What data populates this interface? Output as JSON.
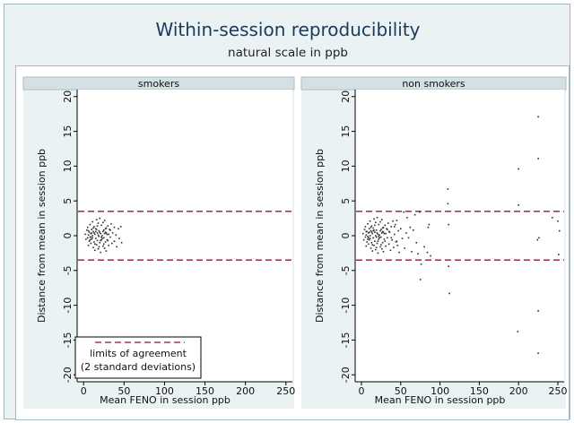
{
  "colors": {
    "panel_background": "#eaf2f3",
    "strip_background": "#d4e0e4",
    "plot_background": "#ffffff",
    "limit_line": "#a23a52",
    "points": "#303030",
    "title": "#1a3b5c"
  },
  "title": "Within-session reproducibility",
  "subtitle": "natural scale in ppb",
  "chart_data": {
    "type": "scatter",
    "xlabel": "Mean FENO in session ppb",
    "ylabel": "Distance from mean in session ppb",
    "xlim": [
      -8,
      258
    ],
    "ylim": [
      -21,
      21
    ],
    "x_ticks": [
      "0",
      "50",
      "100",
      "150",
      "200",
      "250"
    ],
    "y_ticks": [
      "20",
      "15",
      "10",
      "5",
      "0",
      "-5",
      "-10",
      "-15",
      "-20"
    ],
    "limits_of_agreement": [
      3.5,
      -3.5
    ],
    "legend": {
      "position": "bottom-left",
      "line1": "limits of agreement",
      "line2": "(2 standard deviations)"
    },
    "panels": [
      {
        "name": "smokers",
        "points": [
          [
            2,
            0.2
          ],
          [
            3,
            -0.5
          ],
          [
            4,
            0.8
          ],
          [
            5,
            -0.3
          ],
          [
            5,
            1.2
          ],
          [
            6,
            0.1
          ],
          [
            6,
            -1.4
          ],
          [
            7,
            0.5
          ],
          [
            7,
            -0.8
          ],
          [
            8,
            1.6
          ],
          [
            8,
            -0.2
          ],
          [
            9,
            0.3
          ],
          [
            9,
            -1.1
          ],
          [
            10,
            0.9
          ],
          [
            10,
            -0.5
          ],
          [
            11,
            2.0
          ],
          [
            11,
            0.0
          ],
          [
            12,
            -1.7
          ],
          [
            12,
            0.6
          ],
          [
            13,
            1.3
          ],
          [
            13,
            -0.9
          ],
          [
            14,
            0.2
          ],
          [
            14,
            -2.1
          ],
          [
            15,
            1.0
          ],
          [
            15,
            -0.4
          ],
          [
            16,
            2.3
          ],
          [
            16,
            -1.3
          ],
          [
            17,
            0.4
          ],
          [
            17,
            -0.7
          ],
          [
            18,
            1.8
          ],
          [
            18,
            -1.9
          ],
          [
            19,
            0.7
          ],
          [
            19,
            -0.1
          ],
          [
            20,
            2.5
          ],
          [
            20,
            -1.0
          ],
          [
            21,
            0.3
          ],
          [
            21,
            -2.4
          ],
          [
            22,
            1.5
          ],
          [
            22,
            -0.6
          ],
          [
            23,
            0.0
          ],
          [
            24,
            1.9
          ],
          [
            24,
            -1.5
          ],
          [
            25,
            0.8
          ],
          [
            25,
            -0.3
          ],
          [
            26,
            2.2
          ],
          [
            26,
            -1.8
          ],
          [
            27,
            0.5
          ],
          [
            27,
            -0.9
          ],
          [
            28,
            1.1
          ],
          [
            28,
            -2.2
          ],
          [
            29,
            0.2
          ],
          [
            30,
            1.4
          ],
          [
            30,
            -0.7
          ],
          [
            31,
            -1.4
          ],
          [
            32,
            0.9
          ],
          [
            33,
            -0.2
          ],
          [
            34,
            1.7
          ],
          [
            35,
            -1.1
          ],
          [
            36,
            0.4
          ],
          [
            38,
            1.2
          ],
          [
            38,
            -0.8
          ],
          [
            40,
            0.1
          ],
          [
            41,
            -1.6
          ],
          [
            43,
            1.0
          ],
          [
            44,
            -0.4
          ],
          [
            46,
            1.3
          ],
          [
            47,
            -1.0
          ],
          [
            6,
            0.7
          ],
          [
            8,
            -0.6
          ],
          [
            11,
            -0.3
          ],
          [
            13,
            0.4
          ],
          [
            16,
            0.9
          ],
          [
            18,
            0.1
          ],
          [
            20,
            0.5
          ],
          [
            23,
            -0.4
          ],
          [
            26,
            0.3
          ],
          [
            29,
            -0.6
          ],
          [
            12,
            1.1
          ],
          [
            14,
            -1.2
          ],
          [
            17,
            1.4
          ],
          [
            19,
            -1.6
          ],
          [
            22,
            -0.2
          ],
          [
            24,
            0.6
          ],
          [
            27,
            1.0
          ],
          [
            31,
            0.2
          ],
          [
            33,
            0.8
          ],
          [
            9,
            -0.2
          ],
          [
            10,
            0.4
          ],
          [
            15,
            0.6
          ],
          [
            21,
            -0.7
          ],
          [
            25,
            -1.2
          ],
          [
            28,
            0.4
          ]
        ]
      },
      {
        "name": "non smokers",
        "points": [
          [
            2,
            0.3
          ],
          [
            3,
            -0.6
          ],
          [
            4,
            0.9
          ],
          [
            5,
            -0.2
          ],
          [
            5,
            1.3
          ],
          [
            6,
            0.1
          ],
          [
            6,
            -1.5
          ],
          [
            7,
            0.6
          ],
          [
            7,
            -0.9
          ],
          [
            8,
            1.7
          ],
          [
            8,
            -0.1
          ],
          [
            9,
            0.4
          ],
          [
            9,
            -1.2
          ],
          [
            10,
            1.0
          ],
          [
            10,
            -0.6
          ],
          [
            11,
            2.1
          ],
          [
            11,
            0.0
          ],
          [
            12,
            -1.8
          ],
          [
            12,
            0.7
          ],
          [
            13,
            1.4
          ],
          [
            13,
            -1.0
          ],
          [
            14,
            0.3
          ],
          [
            14,
            -2.2
          ],
          [
            15,
            1.1
          ],
          [
            15,
            -0.3
          ],
          [
            16,
            2.4
          ],
          [
            16,
            -1.4
          ],
          [
            17,
            0.5
          ],
          [
            17,
            -0.8
          ],
          [
            18,
            1.9
          ],
          [
            18,
            -2.0
          ],
          [
            19,
            0.8
          ],
          [
            19,
            -0.2
          ],
          [
            20,
            2.6
          ],
          [
            20,
            -1.1
          ],
          [
            21,
            0.2
          ],
          [
            21,
            -2.5
          ],
          [
            22,
            1.6
          ],
          [
            22,
            -0.5
          ],
          [
            23,
            0.1
          ],
          [
            24,
            2.0
          ],
          [
            24,
            -1.6
          ],
          [
            25,
            0.9
          ],
          [
            25,
            -0.2
          ],
          [
            26,
            2.3
          ],
          [
            26,
            -1.9
          ],
          [
            27,
            0.6
          ],
          [
            27,
            -1.0
          ],
          [
            28,
            1.2
          ],
          [
            28,
            -2.3
          ],
          [
            29,
            0.3
          ],
          [
            30,
            1.5
          ],
          [
            30,
            -0.8
          ],
          [
            31,
            -1.5
          ],
          [
            32,
            1.0
          ],
          [
            33,
            -0.3
          ],
          [
            34,
            1.8
          ],
          [
            35,
            -1.2
          ],
          [
            36,
            0.5
          ],
          [
            37,
            -2.1
          ],
          [
            38,
            1.3
          ],
          [
            39,
            -0.6
          ],
          [
            40,
            2.1
          ],
          [
            41,
            -1.7
          ],
          [
            42,
            0.2
          ],
          [
            43,
            1.6
          ],
          [
            44,
            -0.9
          ],
          [
            45,
            2.2
          ],
          [
            46,
            -1.4
          ],
          [
            47,
            0.7
          ],
          [
            48,
            -2.4
          ],
          [
            50,
            1.0
          ],
          [
            52,
            -0.4
          ],
          [
            54,
            3.4
          ],
          [
            55,
            -1.8
          ],
          [
            57,
            0.4
          ],
          [
            58,
            2.6
          ],
          [
            60,
            -0.3
          ],
          [
            62,
            1.2
          ],
          [
            64,
            -2.3
          ],
          [
            66,
            0.8
          ],
          [
            68,
            3.0
          ],
          [
            70,
            -1.0
          ],
          [
            72,
            -2.6
          ],
          [
            74,
            3.4
          ],
          [
            75,
            -6.3
          ],
          [
            76,
            -4.1
          ],
          [
            80,
            -1.6
          ],
          [
            84,
            -2.4
          ],
          [
            85,
            1.2
          ],
          [
            86,
            1.6
          ],
          [
            88,
            -2.9
          ],
          [
            110,
            6.7
          ],
          [
            110,
            4.6
          ],
          [
            111,
            1.6
          ],
          [
            111,
            -4.4
          ],
          [
            112,
            -8.3
          ],
          [
            200,
            9.6
          ],
          [
            200,
            4.4
          ],
          [
            199,
            -13.8
          ],
          [
            225,
            17.1
          ],
          [
            225,
            11.1
          ],
          [
            224,
            -0.6
          ],
          [
            226,
            -0.3
          ],
          [
            225,
            -10.8
          ],
          [
            225,
            -16.9
          ],
          [
            243,
            2.6
          ],
          [
            250,
            2.1
          ],
          [
            251,
            -2.7
          ],
          [
            252,
            0.7
          ],
          [
            6,
            0.6
          ],
          [
            8,
            -0.5
          ],
          [
            11,
            -0.4
          ],
          [
            13,
            0.5
          ],
          [
            16,
            0.8
          ],
          [
            18,
            0.0
          ],
          [
            20,
            0.4
          ],
          [
            23,
            -0.3
          ],
          [
            26,
            0.4
          ],
          [
            29,
            -0.5
          ],
          [
            12,
            1.2
          ],
          [
            14,
            -1.3
          ],
          [
            17,
            1.5
          ],
          [
            19,
            -1.7
          ],
          [
            22,
            -0.1
          ],
          [
            24,
            0.7
          ],
          [
            27,
            1.1
          ],
          [
            31,
            0.3
          ],
          [
            33,
            0.9
          ],
          [
            35,
            0.6
          ],
          [
            38,
            -0.3
          ],
          [
            42,
            1.3
          ],
          [
            45,
            -0.8
          ],
          [
            9,
            -0.3
          ],
          [
            10,
            0.5
          ],
          [
            15,
            0.7
          ],
          [
            21,
            -0.8
          ],
          [
            25,
            -1.3
          ],
          [
            28,
            0.5
          ]
        ]
      }
    ]
  }
}
